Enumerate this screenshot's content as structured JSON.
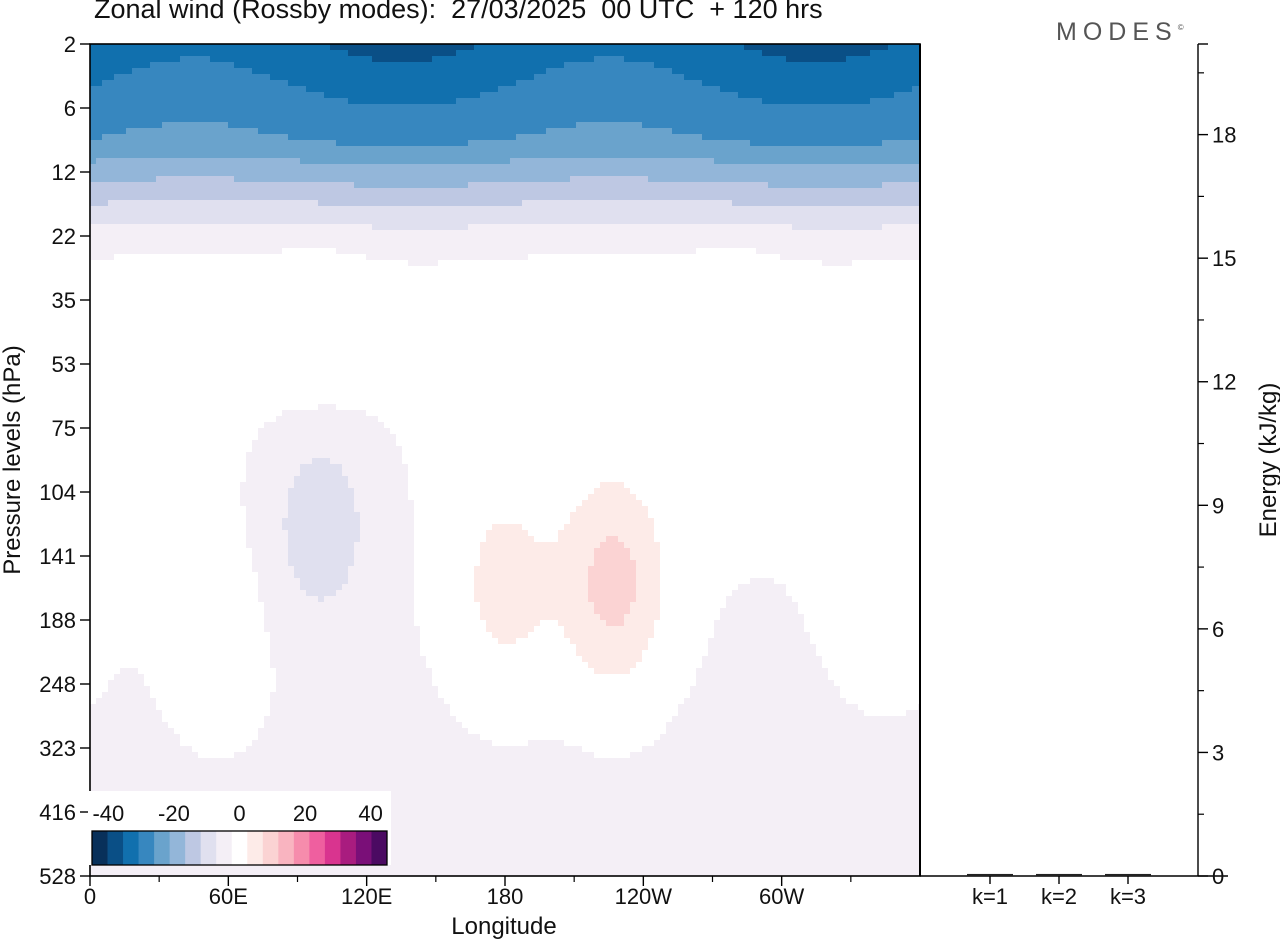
{
  "header": {
    "title": "Zonal wind (Rossby modes):  27/03/2025  00 UTC  + 120 hrs",
    "logo": "MODES",
    "logo_mark": "©"
  },
  "chart_data": [
    {
      "type": "heatmap",
      "title": "Zonal wind (Rossby modes):  27/03/2025  00 UTC  + 120 hrs",
      "xlabel": "Longitude",
      "ylabel": "Pressure levels (hPa)",
      "x_ticks": [
        "0",
        "60E",
        "120E",
        "180",
        "120W",
        "60W"
      ],
      "x_tick_values": [
        0,
        60,
        120,
        180,
        240,
        300
      ],
      "xlim": [
        0,
        360
      ],
      "y_ticks": [
        "2",
        "6",
        "12",
        "22",
        "35",
        "53",
        "75",
        "104",
        "141",
        "188",
        "248",
        "323",
        "416",
        "528"
      ],
      "y_axis_inverted": true,
      "colorbar": {
        "labels": [
          "-40",
          "-20",
          "0",
          "20",
          "40"
        ],
        "label_values": [
          -40,
          -20,
          0,
          20,
          40
        ],
        "range": [
          -45,
          45
        ],
        "step": 5,
        "colors": [
          "#08305a",
          "#0a4f86",
          "#1170ae",
          "#3787bf",
          "#6aa3cc",
          "#93b6d9",
          "#bec8e3",
          "#e0e0ef",
          "#f4eff6",
          "#ffffff",
          "#fdebe8",
          "#fbd3d3",
          "#f9b4c0",
          "#f68cac",
          "#ef5f9f",
          "#d9348f",
          "#a91c7f",
          "#7a0f78",
          "#4b0a62"
        ]
      },
      "field_features": [
        {
          "longitude": 180,
          "level": 5,
          "value": -30
        },
        {
          "longitude": 310,
          "level": 5,
          "value": -32
        },
        {
          "longitude": 0,
          "level": 5,
          "value": -30
        },
        {
          "longitude": 100,
          "level": 119,
          "value": -8
        },
        {
          "longitude": 180,
          "level": 162,
          "value": 8
        },
        {
          "longitude": 227,
          "level": 160,
          "value": 13
        },
        {
          "longitude": 55,
          "level": 200,
          "value": 4
        },
        {
          "longitude": 345,
          "level": 160,
          "value": 4
        },
        {
          "longitude": 100,
          "level": 46,
          "value": 4
        },
        {
          "longitude": 280,
          "level": 46,
          "value": 4
        }
      ]
    },
    {
      "type": "bar",
      "categories": [
        "k=1",
        "k=2",
        "k=3"
      ],
      "values": [
        0.05,
        0.05,
        0.05
      ],
      "ylabel": "Energy (kJ/kg)",
      "y_ticks": [
        "0",
        "3",
        "6",
        "9",
        "12",
        "15",
        "18"
      ],
      "ylim": [
        0,
        20.2
      ]
    }
  ]
}
